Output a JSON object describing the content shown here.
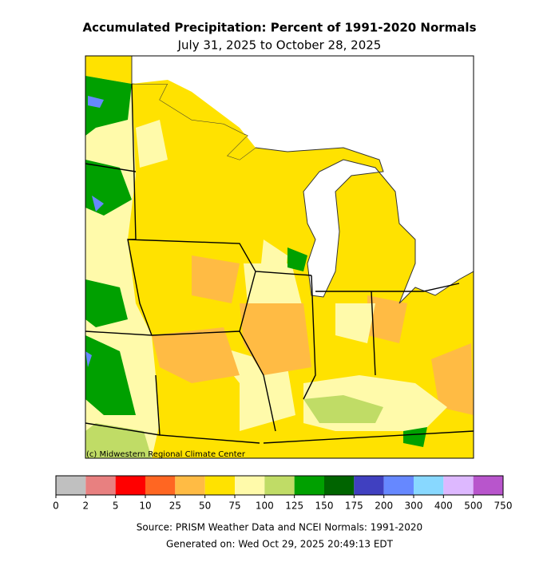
{
  "title": "Accumulated Precipitation: Percent of 1991-2020 Normals",
  "subtitle": "July 31, 2025 to October 28, 2025",
  "map": {
    "credit": "(c) Midwestern Regional Climate Center"
  },
  "colorbar": {
    "bounds": [
      0,
      2,
      5,
      10,
      25,
      50,
      75,
      100,
      125,
      150,
      175,
      200,
      300,
      400,
      500,
      750
    ],
    "colors": [
      "#c0c0c0",
      "#e88080",
      "#ff0000",
      "#ff6622",
      "#ffbb44",
      "#ffe200",
      "#fffaaa",
      "#c0dc66",
      "#00a000",
      "#006400",
      "#4040c0",
      "#6688ff",
      "#88d8ff",
      "#ddb8ff",
      "#b855cc"
    ]
  },
  "source": "Source: PRISM Weather Data and NCEI Normals: 1991-2020",
  "generated": "Generated on: Wed Oct 29, 2025 20:49:13 EDT"
}
